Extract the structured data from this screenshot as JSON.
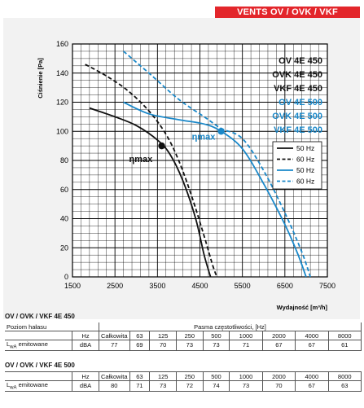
{
  "header": {
    "title": "VENTS OV / OVK / VKF"
  },
  "chart_data": {
    "type": "line",
    "xlabel": "Wydajność [m³/h]",
    "ylabel": "Ciśnienie [Pa]",
    "xlim": [
      1500,
      7500
    ],
    "ylim": [
      0,
      160
    ],
    "x_ticks": [
      "1500",
      "2500",
      "3500",
      "4500",
      "5500",
      "6500",
      "7500"
    ],
    "y_ticks": [
      "0",
      "20",
      "40",
      "60",
      "80",
      "100",
      "120",
      "140",
      "160"
    ],
    "grid": true,
    "model_labels": [
      {
        "text": "OV 4E 450",
        "color": "#111111"
      },
      {
        "text": "OVK 4E 450",
        "color": "#111111"
      },
      {
        "text": "VKF 4E 450",
        "color": "#111111"
      },
      {
        "text": "OV 4E 500",
        "color": "#1a88c9"
      },
      {
        "text": "OVK 4E 500",
        "color": "#1a88c9"
      },
      {
        "text": "VKF 4E 500",
        "color": "#1a88c9"
      }
    ],
    "series": [
      {
        "name": "50 Hz",
        "color": "#111111",
        "dash": "solid",
        "x": [
          1900,
          2500,
          3000,
          3500,
          3800,
          4100,
          4400,
          4600,
          4750
        ],
        "y": [
          116,
          110,
          104,
          94,
          84,
          66,
          40,
          15,
          0
        ]
      },
      {
        "name": "60 Hz",
        "color": "#111111",
        "dash": "dashed",
        "x": [
          1800,
          2300,
          2800,
          3300,
          3700,
          4000,
          4300,
          4600,
          4800,
          4900
        ],
        "y": [
          146,
          138,
          128,
          114,
          98,
          80,
          56,
          28,
          8,
          0
        ]
      },
      {
        "name": "50 Hz",
        "color": "#1a88c9",
        "dash": "solid",
        "x": [
          2700,
          3300,
          4000,
          4600,
          5000,
          5500,
          6000,
          6500,
          6800,
          7000
        ],
        "y": [
          120,
          112,
          108,
          105,
          100,
          88,
          64,
          36,
          16,
          0
        ]
      },
      {
        "name": "60 Hz",
        "color": "#1a88c9",
        "dash": "dashed",
        "x": [
          2700,
          3300,
          4000,
          4600,
          5000,
          5500,
          6000,
          6500,
          6900,
          7100
        ],
        "y": [
          155,
          140,
          122,
          110,
          102,
          95,
          73,
          44,
          17,
          0
        ]
      }
    ],
    "eta_points": [
      {
        "label": "ηmax",
        "x": 3600,
        "y": 90,
        "color": "#111111"
      },
      {
        "label": "ηmax",
        "x": 5000,
        "y": 100,
        "color": "#1a88c9"
      }
    ]
  },
  "tables": [
    {
      "title": "OV / OVK / VKF 4E 450",
      "row1_label": "Poziom hałasu",
      "freq_band_label": "Pasma częstotliwości, [Hz]",
      "row2_label": "",
      "unit_hz": "Hz",
      "total_label": "Całkowita",
      "freqs": [
        "63",
        "125",
        "250",
        "500",
        "1000",
        "2000",
        "4000",
        "8000"
      ],
      "emit_label": "LwA emitowane",
      "unit_dba": "dBA",
      "total": "77",
      "values": [
        "69",
        "70",
        "73",
        "73",
        "71",
        "67",
        "67",
        "61"
      ]
    },
    {
      "title": "OV / OVK / VKF 4E 500",
      "emit_label": "LwA emitowane",
      "unit_hz": "Hz",
      "total_label": "Całkowita",
      "freqs": [
        "63",
        "125",
        "250",
        "500",
        "1000",
        "2000",
        "4000",
        "8000"
      ],
      "unit_dba": "dBA",
      "total": "80",
      "values": [
        "71",
        "73",
        "72",
        "74",
        "73",
        "70",
        "67",
        "63"
      ]
    }
  ]
}
